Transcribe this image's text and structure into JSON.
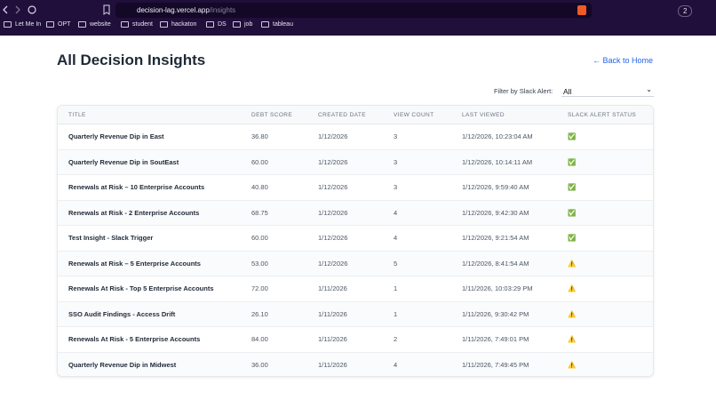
{
  "browser": {
    "url_host": "decision-lag.vercel.app",
    "url_path": "/insights",
    "tab_count": "2",
    "bookmarks": [
      "Let Me In",
      "OPT",
      "website",
      "student",
      "hackaton",
      "DS",
      "job",
      "tableau"
    ]
  },
  "header": {
    "title": "All Decision Insights",
    "back_link": "← Back to Home"
  },
  "filter": {
    "label": "Filter by Slack Alert:",
    "value": "All"
  },
  "table": {
    "columns": [
      "TITLE",
      "DEBT SCORE",
      "CREATED DATE",
      "VIEW COUNT",
      "LAST VIEWED",
      "SLACK ALERT STATUS"
    ],
    "rows": [
      [
        "Quarterly Revenue Dip in East",
        "36.80",
        "1/12/2026",
        "3",
        "1/12/2026, 10:23:04 AM",
        "✅"
      ],
      [
        "Quarterly Revenue Dip in SoutEast",
        "60.00",
        "1/12/2026",
        "3",
        "1/12/2026, 10:14:11 AM",
        "✅"
      ],
      [
        "Renewals at Risk – 10 Enterprise Accounts",
        "40.80",
        "1/12/2026",
        "3",
        "1/12/2026, 9:59:40 AM",
        "✅"
      ],
      [
        "Renewals at Risk - 2 Enterprise Accounts",
        "68.75",
        "1/12/2026",
        "4",
        "1/12/2026, 9:42:30 AM",
        "✅"
      ],
      [
        "Test Insight - Slack Trigger",
        "60.00",
        "1/12/2026",
        "4",
        "1/12/2026, 9:21:54 AM",
        "✅"
      ],
      [
        "Renewals at Risk – 5 Enterprise Accounts",
        "53.00",
        "1/12/2026",
        "5",
        "1/12/2026, 8:41:54 AM",
        "⚠️"
      ],
      [
        "Renewals At Risk - Top 5 Enterprise Accounts",
        "72.00",
        "1/11/2026",
        "1",
        "1/11/2026, 10:03:29 PM",
        "⚠️"
      ],
      [
        "SSO Audit Findings - Access Drift",
        "26.10",
        "1/11/2026",
        "1",
        "1/11/2026, 9:30:42 PM",
        "⚠️"
      ],
      [
        "Renewals At Risk - 5 Enterprise Accounts",
        "84.00",
        "1/11/2026",
        "2",
        "1/11/2026, 7:49:01 PM",
        "⚠️"
      ],
      [
        "Quarterly Revenue Dip in Midwest",
        "36.00",
        "1/11/2026",
        "4",
        "1/11/2026, 7:49:45 PM",
        "⚠️"
      ]
    ]
  }
}
